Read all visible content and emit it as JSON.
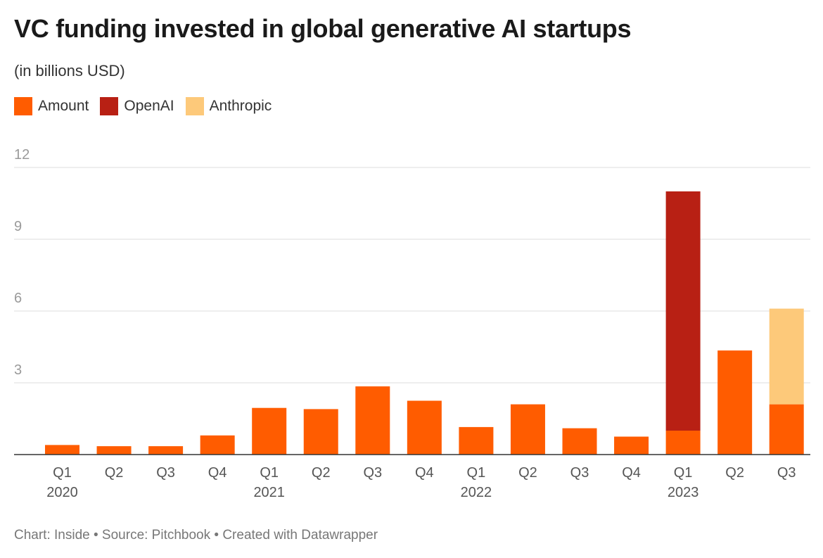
{
  "title": "VC funding invested in global generative AI startups",
  "subtitle": "(in billions USD)",
  "footer": "Chart: Inside • Source: Pitchbook • Created with Datawrapper",
  "legend": [
    {
      "label": "Amount",
      "color": "#ff5c00"
    },
    {
      "label": "OpenAI",
      "color": "#b82014"
    },
    {
      "label": "Anthropic",
      "color": "#fdc97a"
    }
  ],
  "chart_data": {
    "type": "bar",
    "stacked": true,
    "title": "VC funding invested in global generative AI startups",
    "subtitle": "(in billions USD)",
    "xlabel": "",
    "ylabel": "",
    "ylim": [
      0,
      12
    ],
    "yticks": [
      3,
      6,
      9,
      12
    ],
    "categories": [
      "Q1",
      "Q2",
      "Q3",
      "Q4",
      "Q1",
      "Q2",
      "Q3",
      "Q4",
      "Q1",
      "Q2",
      "Q3",
      "Q4",
      "Q1",
      "Q2",
      "Q3"
    ],
    "years": [
      "2020",
      "",
      "",
      "",
      "2021",
      "",
      "",
      "",
      "2022",
      "",
      "",
      "",
      "2023",
      "",
      ""
    ],
    "series": [
      {
        "name": "Amount",
        "color": "#ff5c00",
        "values": [
          0.4,
          0.35,
          0.35,
          0.8,
          1.95,
          1.9,
          2.85,
          2.25,
          1.15,
          2.1,
          1.1,
          0.75,
          1.0,
          4.35,
          2.1
        ]
      },
      {
        "name": "OpenAI",
        "color": "#b82014",
        "values": [
          0,
          0,
          0,
          0,
          0,
          0,
          0,
          0,
          0,
          0,
          0,
          0,
          10.0,
          0,
          0
        ]
      },
      {
        "name": "Anthropic",
        "color": "#fdc97a",
        "values": [
          0,
          0,
          0,
          0,
          0,
          0,
          0,
          0,
          0,
          0,
          0,
          0,
          0,
          0,
          4.0
        ]
      }
    ],
    "grid": true
  }
}
